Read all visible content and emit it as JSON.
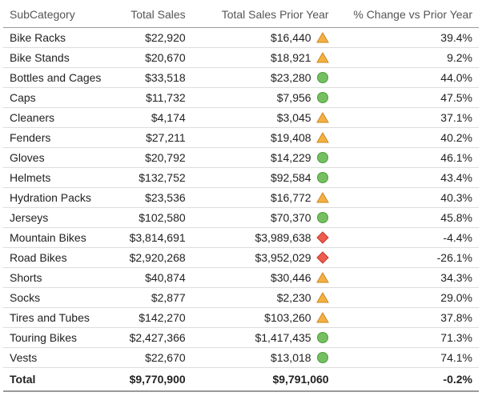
{
  "indicator_colors": {
    "up_fill": "#f6b042",
    "up_stroke": "#c98a1f",
    "ok_fill": "#74c061",
    "ok_stroke": "#4d9a3c",
    "down_fill": "#ed5c4d",
    "down_stroke": "#c23a2d"
  },
  "columns": {
    "sub": "SubCategory",
    "sales": "Total Sales",
    "prior": "Total Sales Prior Year",
    "pct": "% Change vs Prior Year"
  },
  "rows": [
    {
      "sub": "Bike Racks",
      "sales": "$22,920",
      "prior": "$16,440",
      "ind": "up",
      "pct": "39.4%"
    },
    {
      "sub": "Bike Stands",
      "sales": "$20,670",
      "prior": "$18,921",
      "ind": "up",
      "pct": "9.2%"
    },
    {
      "sub": "Bottles and Cages",
      "sales": "$33,518",
      "prior": "$23,280",
      "ind": "ok",
      "pct": "44.0%"
    },
    {
      "sub": "Caps",
      "sales": "$11,732",
      "prior": "$7,956",
      "ind": "ok",
      "pct": "47.5%"
    },
    {
      "sub": "Cleaners",
      "sales": "$4,174",
      "prior": "$3,045",
      "ind": "up",
      "pct": "37.1%"
    },
    {
      "sub": "Fenders",
      "sales": "$27,211",
      "prior": "$19,408",
      "ind": "up",
      "pct": "40.2%"
    },
    {
      "sub": "Gloves",
      "sales": "$20,792",
      "prior": "$14,229",
      "ind": "ok",
      "pct": "46.1%"
    },
    {
      "sub": "Helmets",
      "sales": "$132,752",
      "prior": "$92,584",
      "ind": "ok",
      "pct": "43.4%"
    },
    {
      "sub": "Hydration Packs",
      "sales": "$23,536",
      "prior": "$16,772",
      "ind": "up",
      "pct": "40.3%"
    },
    {
      "sub": "Jerseys",
      "sales": "$102,580",
      "prior": "$70,370",
      "ind": "ok",
      "pct": "45.8%"
    },
    {
      "sub": "Mountain Bikes",
      "sales": "$3,814,691",
      "prior": "$3,989,638",
      "ind": "down",
      "pct": "-4.4%"
    },
    {
      "sub": "Road Bikes",
      "sales": "$2,920,268",
      "prior": "$3,952,029",
      "ind": "down",
      "pct": "-26.1%"
    },
    {
      "sub": "Shorts",
      "sales": "$40,874",
      "prior": "$30,446",
      "ind": "up",
      "pct": "34.3%"
    },
    {
      "sub": "Socks",
      "sales": "$2,877",
      "prior": "$2,230",
      "ind": "up",
      "pct": "29.0%"
    },
    {
      "sub": "Tires and Tubes",
      "sales": "$142,270",
      "prior": "$103,260",
      "ind": "up",
      "pct": "37.8%"
    },
    {
      "sub": "Touring Bikes",
      "sales": "$2,427,366",
      "prior": "$1,417,435",
      "ind": "ok",
      "pct": "71.3%"
    },
    {
      "sub": "Vests",
      "sales": "$22,670",
      "prior": "$13,018",
      "ind": "ok",
      "pct": "74.1%"
    }
  ],
  "total": {
    "label": "Total",
    "sales": "$9,770,900",
    "prior": "$9,791,060",
    "pct": "-0.2%"
  }
}
